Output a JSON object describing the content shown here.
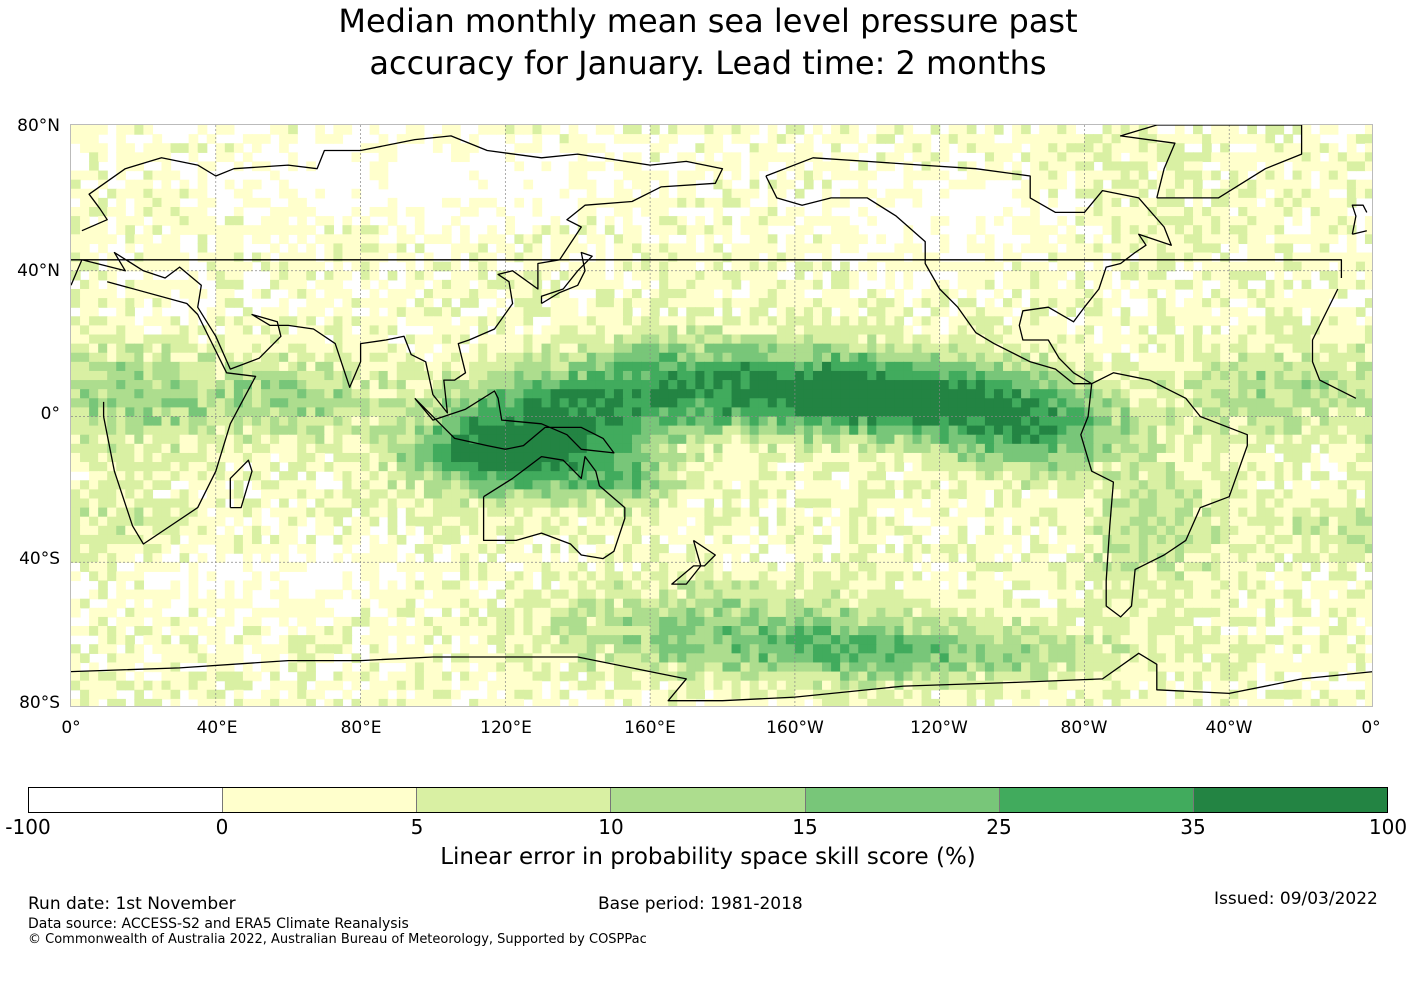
{
  "title": {
    "line1": "Median monthly mean sea level pressure past",
    "line2": "accuracy for January. Lead time: 2 months"
  },
  "map": {
    "lat_labels": [
      "80°N",
      "40°N",
      "0°",
      "40°S",
      "80°S"
    ],
    "lon_labels": [
      "0°",
      "40°E",
      "80°E",
      "120°E",
      "160°E",
      "160°W",
      "120°W",
      "80°W",
      "40°W",
      "0°"
    ]
  },
  "colorbar": {
    "colors": [
      "#ffffff",
      "#ffffcc",
      "#d9f0a3",
      "#addd8e",
      "#78c679",
      "#41ab5d",
      "#238443"
    ],
    "ticks": [
      "-100",
      "0",
      "5",
      "10",
      "15",
      "25",
      "35",
      "100"
    ],
    "label": "Linear error in probability space skill score (%)"
  },
  "footer": {
    "run_date": "Run date: 1st November",
    "base_period": "Base period: 1981-2018",
    "issued": "Issued: 09/03/2022",
    "data_source": "Data source: ACCESS-S2 and ERA5 Climate Reanalysis",
    "copyright": "© Commonwealth of Australia 2022, Australian Bureau of Meteorology, Supported by COSPPac"
  }
}
